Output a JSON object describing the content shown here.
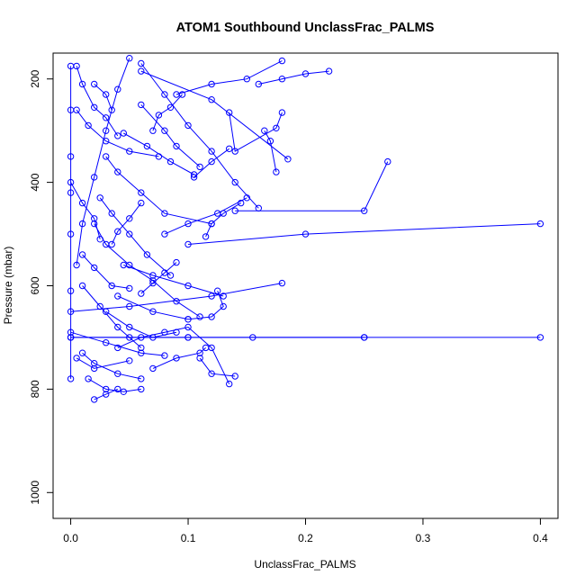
{
  "chart_data": {
    "type": "scatter",
    "title": "ATOM1 Southbound UnclassFrac_PALMS",
    "xlabel": "UnclassFrac_PALMS",
    "ylabel": "Pressure (mbar)",
    "xlim": [
      -0.015,
      0.415
    ],
    "ylim": [
      1050,
      150
    ],
    "y_reversed": true,
    "x_ticks": [
      0.0,
      0.1,
      0.2,
      0.3,
      0.4
    ],
    "x_tick_labels": [
      "0.0",
      "0.1",
      "0.2",
      "0.3",
      "0.4"
    ],
    "y_ticks": [
      200,
      400,
      600,
      800,
      1000
    ],
    "y_tick_labels": [
      "200",
      "400",
      "600",
      "800",
      "1000"
    ],
    "grid": false,
    "legend": "none",
    "series_color": "#0000ff",
    "series": [
      {
        "x": [
          0.0,
          0.0,
          0.0,
          0.0,
          0.0,
          0.0,
          0.0,
          0.0
        ],
        "y": [
          175,
          260,
          350,
          420,
          500,
          610,
          700,
          780
        ]
      },
      {
        "x": [
          0.05,
          0.04,
          0.03,
          0.02,
          0.01,
          0.005
        ],
        "y": [
          160,
          220,
          300,
          390,
          480,
          560
        ]
      },
      {
        "x": [
          0.06,
          0.08,
          0.1,
          0.12,
          0.14,
          0.16
        ],
        "y": [
          170,
          230,
          290,
          340,
          400,
          450
        ]
      },
      {
        "x": [
          0.02,
          0.03,
          0.05,
          0.07,
          0.09,
          0.11
        ],
        "y": [
          480,
          520,
          560,
          590,
          630,
          660
        ]
      },
      {
        "x": [
          0.09,
          0.12,
          0.15,
          0.18
        ],
        "y": [
          230,
          210,
          200,
          165
        ]
      },
      {
        "x": [
          0.01,
          0.025,
          0.04,
          0.06
        ],
        "y": [
          600,
          640,
          680,
          720
        ]
      },
      {
        "x": [
          0.135,
          0.14,
          0.175,
          0.18
        ],
        "y": [
          265,
          340,
          295,
          265
        ]
      },
      {
        "x": [
          0.03,
          0.04,
          0.06,
          0.08,
          0.12
        ],
        "y": [
          350,
          380,
          420,
          460,
          480
        ]
      },
      {
        "x": [
          0.045,
          0.07,
          0.1,
          0.13
        ],
        "y": [
          560,
          580,
          600,
          620
        ]
      },
      {
        "x": [
          0.005,
          0.02,
          0.05
        ],
        "y": [
          740,
          760,
          745
        ]
      },
      {
        "x": [
          0.02,
          0.03,
          0.04
        ],
        "y": [
          820,
          810,
          800
        ]
      },
      {
        "x": [
          0.0,
          0.05,
          0.1,
          0.25,
          0.4
        ],
        "y": [
          700,
          700,
          700,
          700,
          700
        ]
      },
      {
        "x": [
          0.0,
          0.1,
          0.155,
          0.25
        ],
        "y": [
          700,
          700,
          700,
          700
        ]
      },
      {
        "x": [
          0.14,
          0.25,
          0.27
        ],
        "y": [
          455,
          455,
          360
        ]
      },
      {
        "x": [
          0.1,
          0.2,
          0.4
        ],
        "y": [
          520,
          500,
          480
        ]
      },
      {
        "x": [
          0.0,
          0.05,
          0.12,
          0.18
        ],
        "y": [
          650,
          640,
          620,
          595
        ]
      },
      {
        "x": [
          0.06,
          0.12,
          0.185
        ],
        "y": [
          185,
          240,
          355
        ]
      },
      {
        "x": [
          0.01,
          0.02,
          0.04,
          0.06
        ],
        "y": [
          730,
          750,
          770,
          780
        ]
      },
      {
        "x": [
          0.11,
          0.12,
          0.14
        ],
        "y": [
          740,
          770,
          775
        ]
      },
      {
        "x": [
          0.04,
          0.06,
          0.08,
          0.1,
          0.12,
          0.135
        ],
        "y": [
          720,
          700,
          690,
          680,
          720,
          790
        ]
      },
      {
        "x": [
          0.015,
          0.03,
          0.045,
          0.06
        ],
        "y": [
          780,
          800,
          805,
          800
        ]
      },
      {
        "x": [
          0.06,
          0.08,
          0.09,
          0.11
        ],
        "y": [
          250,
          300,
          330,
          370
        ]
      },
      {
        "x": [
          0.025,
          0.035,
          0.05,
          0.065,
          0.085
        ],
        "y": [
          430,
          460,
          500,
          540,
          580
        ]
      },
      {
        "x": [
          0.08,
          0.1,
          0.125,
          0.15
        ],
        "y": [
          500,
          480,
          460,
          430
        ]
      },
      {
        "x": [
          0.165,
          0.17,
          0.175
        ],
        "y": [
          300,
          320,
          380
        ]
      },
      {
        "x": [
          0.04,
          0.07,
          0.1
        ],
        "y": [
          620,
          650,
          665
        ]
      },
      {
        "x": [
          0.22,
          0.2,
          0.18,
          0.16
        ],
        "y": [
          185,
          190,
          200,
          210
        ]
      },
      {
        "x": [
          0.03,
          0.05,
          0.07,
          0.09
        ],
        "y": [
          650,
          680,
          700,
          690
        ]
      },
      {
        "x": [
          0.125,
          0.13,
          0.12,
          0.1
        ],
        "y": [
          610,
          640,
          660,
          665
        ]
      },
      {
        "x": [
          0.005,
          0.015,
          0.03,
          0.05,
          0.075
        ],
        "y": [
          260,
          290,
          320,
          340,
          350
        ]
      },
      {
        "x": [
          0.07,
          0.09,
          0.11,
          0.115
        ],
        "y": [
          760,
          740,
          730,
          720
        ]
      },
      {
        "x": [
          0.02,
          0.03,
          0.035
        ],
        "y": [
          210,
          230,
          260
        ]
      },
      {
        "x": [
          0.01,
          0.02,
          0.035,
          0.05
        ],
        "y": [
          540,
          565,
          600,
          605
        ]
      },
      {
        "x": [
          0.06,
          0.05,
          0.04,
          0.035
        ],
        "y": [
          440,
          470,
          495,
          520
        ]
      },
      {
        "x": [
          0.09,
          0.08,
          0.07,
          0.06
        ],
        "y": [
          555,
          575,
          595,
          615
        ]
      },
      {
        "x": [
          0.0,
          0.03,
          0.06,
          0.08
        ],
        "y": [
          690,
          710,
          730,
          735
        ]
      },
      {
        "x": [
          0.145,
          0.13,
          0.12,
          0.115
        ],
        "y": [
          440,
          460,
          480,
          505
        ]
      },
      {
        "x": [
          0.0,
          0.01,
          0.02,
          0.025
        ],
        "y": [
          400,
          440,
          470,
          510
        ]
      },
      {
        "x": [
          0.045,
          0.065,
          0.085,
          0.105
        ],
        "y": [
          305,
          330,
          360,
          385
        ]
      },
      {
        "x": [
          0.135,
          0.12,
          0.105
        ],
        "y": [
          335,
          360,
          390
        ]
      },
      {
        "x": [
          0.005,
          0.01,
          0.02,
          0.03,
          0.04
        ],
        "y": [
          175,
          210,
          255,
          275,
          310
        ]
      },
      {
        "x": [
          0.095,
          0.085,
          0.075,
          0.07
        ],
        "y": [
          230,
          255,
          270,
          300
        ]
      }
    ]
  }
}
